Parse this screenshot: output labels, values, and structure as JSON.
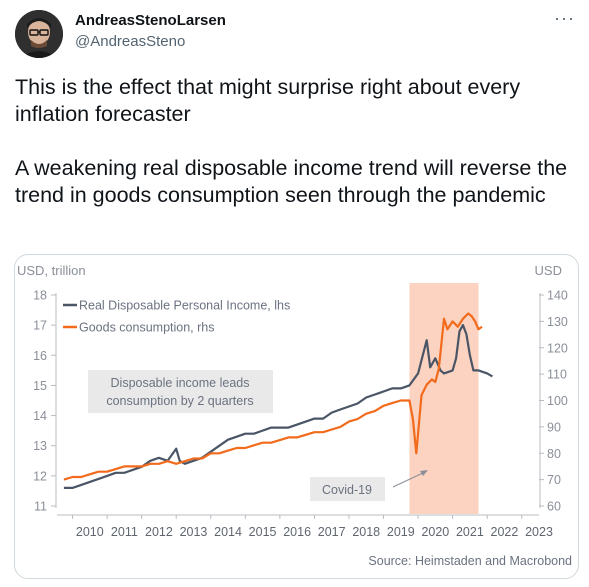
{
  "tweet": {
    "display_name": "AndreasStenoLarsen",
    "handle": "@AndreasSteno",
    "more_icon": "more-horizontal-icon",
    "text": "This is the effect that might surprise right about every inflation forecaster\n\nA weakening real disposable income trend will reverse the trend in goods consumption seen through the pandemic"
  },
  "chart_data": {
    "type": "line",
    "ylabel_left": "USD, trillion",
    "ylabel_right": "USD",
    "x_ticks": [
      "2010",
      "2011",
      "2012",
      "2013",
      "2014",
      "2015",
      "2016",
      "2017",
      "2018",
      "2019",
      "2020",
      "2021",
      "2022",
      "2023"
    ],
    "ylim_left": [
      11,
      18
    ],
    "yticks_left": [
      "11",
      "12",
      "13",
      "14",
      "15",
      "16",
      "17",
      "18"
    ],
    "ylim_right": [
      60,
      140
    ],
    "yticks_right": [
      "60",
      "70",
      "80",
      "90",
      "100",
      "110",
      "120",
      "130",
      "140"
    ],
    "legend_position": "top-left",
    "annotations": {
      "income_note": "Disposable income leads consumption by 2 quarters",
      "covid": "Covid-19",
      "source": "Source: Heimstaden and Macrobond"
    },
    "shaded_region": {
      "from": 2019.75,
      "to": 2021.75,
      "color": "#fbd3c0"
    },
    "series": [
      {
        "name": "Real Disposable Personal Income, lhs",
        "axis": "left",
        "color": "#4a5566",
        "x": [
          2009.75,
          2010.0,
          2010.25,
          2010.5,
          2010.75,
          2011.0,
          2011.25,
          2011.5,
          2011.75,
          2012.0,
          2012.25,
          2012.5,
          2012.75,
          2013.0,
          2013.1,
          2013.25,
          2013.5,
          2013.75,
          2014.0,
          2014.25,
          2014.5,
          2014.75,
          2015.0,
          2015.25,
          2015.5,
          2015.75,
          2016.0,
          2016.25,
          2016.5,
          2016.75,
          2017.0,
          2017.25,
          2017.5,
          2017.75,
          2018.0,
          2018.25,
          2018.5,
          2018.75,
          2019.0,
          2019.25,
          2019.5,
          2019.75,
          2020.0,
          2020.25,
          2020.35,
          2020.5,
          2020.65,
          2020.75,
          2021.0,
          2021.1,
          2021.2,
          2021.3,
          2021.4,
          2021.5,
          2021.6,
          2021.75,
          2022.0,
          2022.15
        ],
        "values": [
          11.6,
          11.6,
          11.7,
          11.8,
          11.9,
          12.0,
          12.1,
          12.1,
          12.2,
          12.3,
          12.5,
          12.6,
          12.5,
          12.9,
          12.5,
          12.4,
          12.5,
          12.6,
          12.8,
          13.0,
          13.2,
          13.3,
          13.4,
          13.4,
          13.5,
          13.6,
          13.6,
          13.6,
          13.7,
          13.8,
          13.9,
          13.9,
          14.1,
          14.2,
          14.3,
          14.4,
          14.6,
          14.7,
          14.8,
          14.9,
          14.9,
          15.0,
          15.4,
          16.5,
          15.6,
          15.9,
          15.5,
          15.4,
          15.5,
          15.9,
          16.8,
          17.0,
          16.7,
          16.0,
          15.5,
          15.5,
          15.4,
          15.3
        ]
      },
      {
        "name": "Goods consumption, rhs",
        "axis": "right",
        "color": "#f26a1b",
        "x": [
          2009.75,
          2010.0,
          2010.25,
          2010.5,
          2010.75,
          2011.0,
          2011.25,
          2011.5,
          2011.75,
          2012.0,
          2012.25,
          2012.5,
          2012.75,
          2013.0,
          2013.25,
          2013.5,
          2013.75,
          2014.0,
          2014.25,
          2014.5,
          2014.75,
          2015.0,
          2015.25,
          2015.5,
          2015.75,
          2016.0,
          2016.25,
          2016.5,
          2016.75,
          2017.0,
          2017.25,
          2017.5,
          2017.75,
          2018.0,
          2018.25,
          2018.5,
          2018.75,
          2019.0,
          2019.25,
          2019.5,
          2019.75,
          2019.85,
          2019.95,
          2020.1,
          2020.25,
          2020.4,
          2020.5,
          2020.6,
          2020.75,
          2020.85,
          2021.0,
          2021.15,
          2021.3,
          2021.45,
          2021.55,
          2021.65,
          2021.75,
          2021.85
        ],
        "values": [
          70,
          71,
          71,
          72,
          73,
          73,
          74,
          75,
          75,
          75,
          76,
          76,
          77,
          76,
          77,
          78,
          78,
          80,
          80,
          81,
          82,
          82,
          83,
          84,
          84,
          85,
          86,
          86,
          87,
          88,
          88,
          89,
          90,
          92,
          93,
          95,
          96,
          98,
          99,
          100,
          100,
          93,
          80,
          102,
          106,
          108,
          107,
          112,
          131,
          127,
          130,
          128,
          131,
          133,
          132,
          130,
          127,
          128
        ]
      }
    ]
  }
}
